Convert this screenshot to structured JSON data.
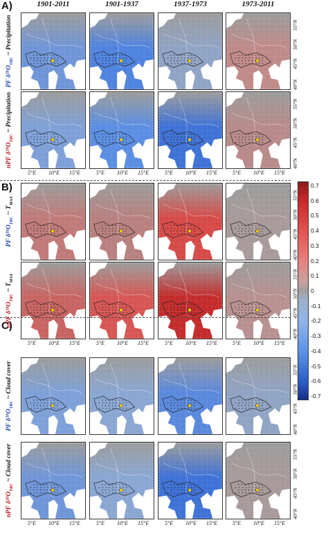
{
  "panel_letters": [
    "A)",
    "B)",
    "C)"
  ],
  "columns": [
    "1901-2011",
    "1901-1937",
    "1937-1973",
    "1973-2011"
  ],
  "rows": [
    {
      "prefix": "PF δ¹⁸O",
      "sub": "TRC",
      "suffix": " ~ Precipitation",
      "prefix_color": "blue"
    },
    {
      "prefix": "nPF δ¹⁸O",
      "sub": "TRC",
      "suffix": " ~ Precipitation",
      "prefix_color": "red"
    },
    {
      "prefix": "PF δ¹⁸O",
      "sub": "TRC",
      "suffix": " ~ T",
      "suffix_sub": "MAX",
      "prefix_color": "blue"
    },
    {
      "prefix": "nPF δ¹⁸O",
      "sub": "TRC",
      "suffix": " ~ T",
      "suffix_sub": "MAX",
      "prefix_color": "red"
    },
    {
      "prefix": "PF δ¹⁸O",
      "sub": "TRC",
      "suffix": " ~ Cloud cover",
      "prefix_color": "blue"
    },
    {
      "prefix": "nPF δ¹⁸O",
      "sub": "TRC",
      "suffix": " ~ Cloud cover",
      "prefix_color": "red"
    }
  ],
  "lat_labels": [
    "55°N",
    "50°N",
    "45°N",
    "40°N"
  ],
  "lon_labels": [
    "5°E",
    "10°E",
    "15°E"
  ],
  "colorbar": {
    "ticks": [
      "0.7",
      "0.6",
      "0.5",
      "0.4",
      "0.3",
      "0.2",
      "0.1",
      "0",
      "-0.1",
      "-0.2",
      "-0.3",
      "-0.4",
      "-0.5",
      "-0.6",
      "-0.7"
    ],
    "min": -0.7,
    "max": 0.7
  },
  "map_tones": [
    [
      "#6f95d8",
      "#4f83df",
      "#8fa3c4",
      "#c08a88"
    ],
    [
      "#7ea0d8",
      "#5b8ee2",
      "#3f72d6",
      "#b88a8a"
    ],
    [
      "#c07a78",
      "#b8807e",
      "#d64a48",
      "#a89a9a"
    ],
    [
      "#c86462",
      "#d65654",
      "#c42c2c",
      "#b89090"
    ],
    [
      "#7ea0d8",
      "#8aa6d2",
      "#5a88dc",
      "#8fa3c4"
    ],
    [
      "#6f95d8",
      "#8aa6d2",
      "#3f72d6",
      "#a89a9a"
    ]
  ],
  "colors": {
    "marker_yellow": "#f5d000",
    "sea_white": "#ffffff",
    "accent_red": "#b5141e",
    "accent_blue": "#1d3fae"
  }
}
